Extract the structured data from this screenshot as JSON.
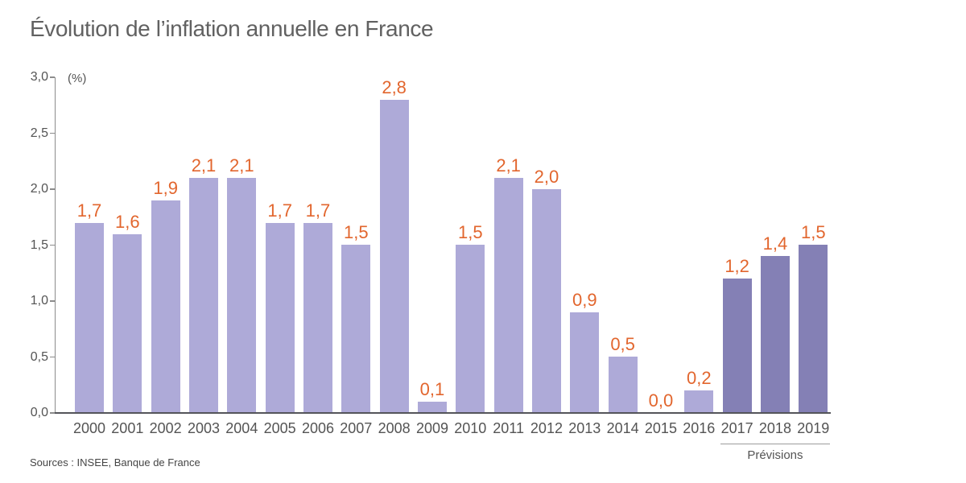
{
  "chart_data": {
    "type": "bar",
    "title": "Évolution de l’inflation annuelle en France",
    "unit_label": "(%)",
    "categories": [
      "2000",
      "2001",
      "2002",
      "2003",
      "2004",
      "2005",
      "2006",
      "2007",
      "2008",
      "2009",
      "2010",
      "2011",
      "2012",
      "2013",
      "2014",
      "2015",
      "2016",
      "2017",
      "2018",
      "2019"
    ],
    "values": [
      1.7,
      1.6,
      1.9,
      2.1,
      2.1,
      1.7,
      1.7,
      1.5,
      2.8,
      0.1,
      1.5,
      2.1,
      2.0,
      0.9,
      0.5,
      0.0,
      0.2,
      1.2,
      1.4,
      1.5
    ],
    "value_labels": [
      "1,7",
      "1,6",
      "1,9",
      "2,1",
      "2,1",
      "1,7",
      "1,7",
      "1,5",
      "2,8",
      "0,1",
      "1,5",
      "2,1",
      "2,0",
      "0,9",
      "0,5",
      "0,0",
      "0,2",
      "1,2",
      "1,4",
      "1,5"
    ],
    "y_ticks": [
      "0,0",
      "0,5",
      "1,0",
      "1,5",
      "2,0",
      "2,5",
      "3,0"
    ],
    "ylim": [
      0,
      3
    ],
    "grid": false,
    "legend": "none",
    "forecast_years": [
      "2017",
      "2018",
      "2019"
    ],
    "forecast_label": "Prévisions",
    "source": "Sources : INSEE, Banque de France",
    "colors": {
      "bar": "#aeaad8",
      "bar_forecast": "#8480b5",
      "value_label": "#e2662e",
      "axis_line": "#8c8c8c",
      "baseline": "#54555a",
      "text": "#545454",
      "title": "#616161",
      "source": "#454545"
    }
  }
}
